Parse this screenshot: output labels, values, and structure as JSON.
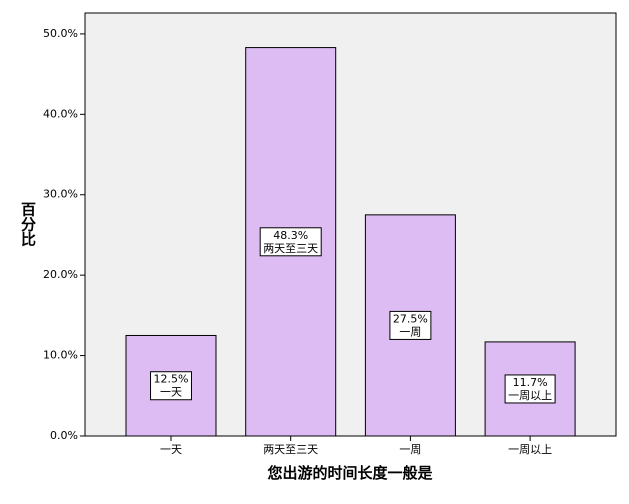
{
  "chart_data": {
    "type": "bar",
    "x_label": "您出游的时间长度一般是",
    "y_label": "百分比",
    "categories": [
      "一天",
      "两天至三天",
      "一周",
      "一周以上"
    ],
    "values": [
      12.5,
      48.3,
      27.5,
      11.7
    ],
    "value_labels": [
      "12.5%",
      "48.3%",
      "27.5%",
      "11.7%"
    ],
    "color": "#dcbcf2",
    "ylim": [
      0,
      52.6
    ],
    "yticks": [
      {
        "value": 0,
        "label": "0.0%"
      },
      {
        "value": 10,
        "label": "10.0%"
      },
      {
        "value": 20,
        "label": "20.0%"
      },
      {
        "value": 30,
        "label": "30.0%"
      },
      {
        "value": 40,
        "label": "40.0%"
      },
      {
        "value": 50,
        "label": "50.0%"
      }
    ]
  }
}
